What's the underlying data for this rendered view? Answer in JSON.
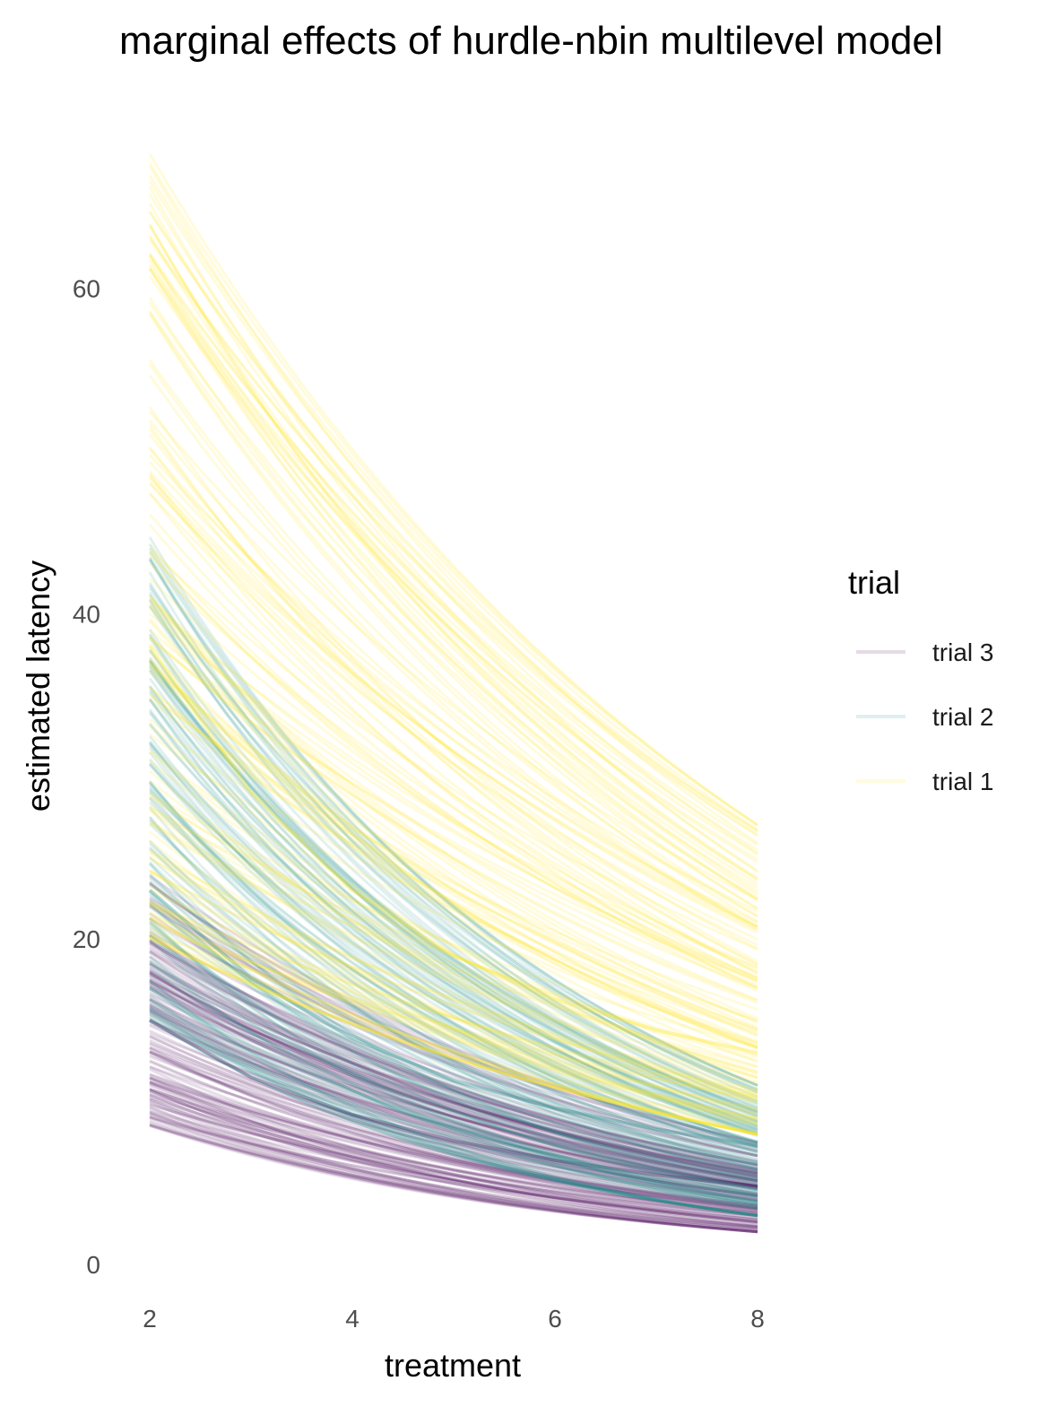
{
  "chart_data": {
    "type": "line",
    "title": "marginal effects of hurdle-nbin multilevel model",
    "xlabel": "treatment",
    "ylabel": "estimated latency",
    "xlim": [
      2,
      8
    ],
    "ylim": [
      0,
      70
    ],
    "x_ticks": [
      2,
      4,
      6,
      8
    ],
    "y_ticks": [
      0,
      20,
      40,
      60
    ],
    "grid": false,
    "legend": {
      "title": "trial",
      "position": "right"
    },
    "series": [
      {
        "name": "trial 3",
        "color": "#440154",
        "draws": 140,
        "x": [
          2,
          8
        ],
        "y_at_2_range": [
          8.5,
          24
        ],
        "y_at_8_range": [
          2,
          7.5
        ],
        "typical": {
          "x": [
            2,
            3,
            4,
            5,
            6,
            7,
            8
          ],
          "y": [
            15,
            11.5,
            9.2,
            7.6,
            6.4,
            5.5,
            4.8
          ]
        }
      },
      {
        "name": "trial 2",
        "color": "#21908c",
        "draws": 140,
        "x": [
          2,
          8
        ],
        "y_at_2_range": [
          15,
          45
        ],
        "y_at_8_range": [
          3,
          11
        ],
        "typical": {
          "x": [
            2,
            3,
            4,
            5,
            6,
            7,
            8
          ],
          "y": [
            23,
            17.6,
            13.9,
            11.3,
            9.6,
            8.3,
            7.3
          ]
        }
      },
      {
        "name": "trial 1",
        "color": "#fde725",
        "draws": 140,
        "x": [
          2,
          8
        ],
        "y_at_2_range": [
          20,
          69
        ],
        "y_at_8_range": [
          8,
          27
        ],
        "typical": {
          "x": [
            2,
            3,
            4,
            5,
            6,
            7,
            8
          ],
          "y": [
            38,
            29,
            23,
            19,
            16.3,
            14.4,
            13
          ]
        }
      }
    ]
  }
}
